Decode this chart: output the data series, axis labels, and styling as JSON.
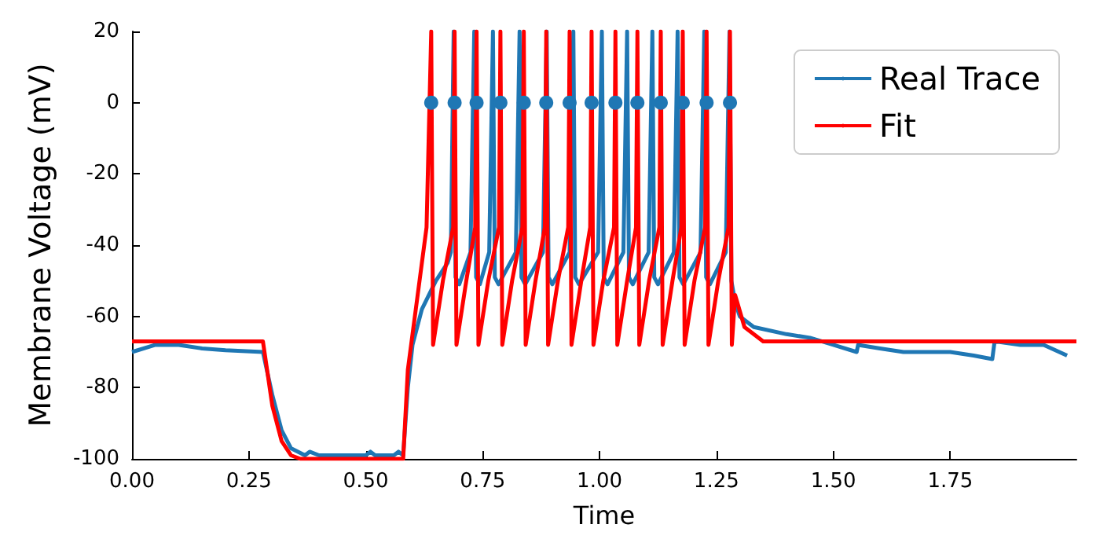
{
  "chart_data": {
    "type": "line",
    "xlabel": "Time",
    "ylabel": "Membrane Voltage (mV)",
    "xlim": [
      0,
      2.02
    ],
    "xticks": [
      {
        "value": 0,
        "label": "0.00"
      },
      {
        "value": 0.25,
        "label": "0.25"
      },
      {
        "value": 0.5,
        "label": "0.50"
      },
      {
        "value": 0.75,
        "label": "0.75"
      },
      {
        "value": 1,
        "label": "1.00"
      },
      {
        "value": 1.25,
        "label": "1.25"
      },
      {
        "value": 1.5,
        "label": "1.50"
      },
      {
        "value": 1.75,
        "label": "1.75"
      }
    ],
    "ylim": [
      -100,
      20
    ],
    "yticks": [
      -100,
      -80,
      -60,
      -40,
      -20,
      0,
      20
    ],
    "grid": false,
    "legend": "top right",
    "marker": "none",
    "line_style": "solid",
    "series": [
      {
        "name": "Real Trace",
        "color": "#1f77b4",
        "x": [
          0,
          0.05,
          0.1,
          0.15,
          0.2,
          0.28,
          0.3,
          0.32,
          0.34,
          0.37,
          0.38,
          0.4,
          0.5,
          0.51,
          0.52,
          0.56,
          0.57,
          0.58,
          0.59,
          0.6,
          0.62,
          0.65,
          0.675,
          0.682,
          0.688,
          0.692,
          0.7,
          0.724,
          0.732,
          0.736,
          0.744,
          0.764,
          0.772,
          0.776,
          0.784,
          0.821,
          0.829,
          0.833,
          0.841,
          0.879,
          0.887,
          0.891,
          0.899,
          0.936,
          0.944,
          0.948,
          0.956,
          0.997,
          1.005,
          1.009,
          1.017,
          1.051,
          1.059,
          1.063,
          1.071,
          1.105,
          1.113,
          1.117,
          1.125,
          1.159,
          1.167,
          1.171,
          1.179,
          1.216,
          1.224,
          1.228,
          1.236,
          1.27,
          1.278,
          1.282,
          1.29,
          1.3,
          1.33,
          1.4,
          1.45,
          1.5,
          1.55,
          1.553,
          1.6,
          1.65,
          1.7,
          1.75,
          1.8,
          1.84,
          1.845,
          1.9,
          1.95,
          2.0
        ],
        "values": [
          -70,
          -68,
          -68,
          -69,
          -69.5,
          -70,
          -82,
          -92,
          -97,
          -99,
          -98,
          -99,
          -99,
          -98,
          -99,
          -99,
          -98,
          -99,
          -80,
          -68,
          -58,
          -50,
          -45,
          -42,
          20,
          -49,
          -51,
          -42,
          20,
          -49,
          -51,
          -42,
          20,
          -49,
          -51,
          -42,
          20,
          -49,
          -51,
          -42,
          20,
          -49,
          -51,
          -42,
          20,
          -49,
          -51,
          -42,
          20,
          -49,
          -51,
          -42,
          20,
          -49,
          -51,
          -42,
          20,
          -49,
          -51,
          -42,
          20,
          -49,
          -51,
          -42,
          20,
          -49,
          -51,
          -42,
          20,
          -50,
          -56,
          -60,
          -63,
          -65,
          -66,
          -68,
          -70,
          -68,
          -69,
          -70,
          -70,
          -70,
          -71,
          -72,
          -67,
          -68,
          -68,
          -71
        ]
      },
      {
        "name": "Fit",
        "color": "#ff0000",
        "x": [
          0,
          0.28,
          0.3,
          0.32,
          0.34,
          0.36,
          0.38,
          0.58,
          0.59,
          0.61,
          0.63,
          0.64,
          0.644,
          0.665,
          0.687,
          0.69,
          0.694,
          0.715,
          0.734,
          0.737,
          0.741,
          0.762,
          0.785,
          0.788,
          0.792,
          0.813,
          0.835,
          0.838,
          0.842,
          0.863,
          0.883,
          0.886,
          0.89,
          0.911,
          0.933,
          0.936,
          0.94,
          0.961,
          0.98,
          0.983,
          0.987,
          1.008,
          1.031,
          1.034,
          1.038,
          1.059,
          1.078,
          1.081,
          1.085,
          1.106,
          1.128,
          1.131,
          1.135,
          1.156,
          1.175,
          1.178,
          1.182,
          1.203,
          1.226,
          1.229,
          1.233,
          1.254,
          1.276,
          1.279,
          1.283,
          1.29,
          1.31,
          1.35,
          2.02
        ],
        "values": [
          -67,
          -67,
          -85,
          -95,
          -99,
          -100,
          -100,
          -100,
          -75,
          -55,
          -35,
          20,
          -68,
          -50,
          -35,
          20,
          -68,
          -50,
          -35,
          20,
          -68,
          -50,
          -35,
          20,
          -68,
          -50,
          -35,
          20,
          -68,
          -50,
          -35,
          20,
          -68,
          -50,
          -35,
          20,
          -68,
          -50,
          -35,
          20,
          -68,
          -50,
          -35,
          20,
          -68,
          -50,
          -35,
          20,
          -68,
          -50,
          -35,
          20,
          -68,
          -50,
          -35,
          20,
          -68,
          -50,
          -35,
          20,
          -68,
          -50,
          -35,
          20,
          -68,
          -54,
          -63,
          -67,
          -67
        ]
      },
      {
        "type": "scatter",
        "color": "#1f77b4",
        "marker": "circle",
        "x": [
          0.64,
          0.69,
          0.737,
          0.788,
          0.838,
          0.886,
          0.936,
          0.983,
          1.034,
          1.081,
          1.131,
          1.178,
          1.229,
          1.279
        ],
        "values": [
          0,
          0,
          0,
          0,
          0,
          0,
          0,
          0,
          0,
          0,
          0,
          0,
          0,
          0
        ]
      }
    ]
  }
}
